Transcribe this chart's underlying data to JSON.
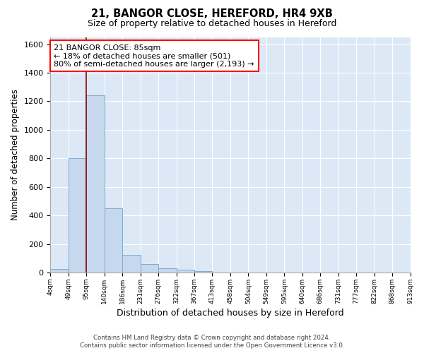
{
  "title": "21, BANGOR CLOSE, HEREFORD, HR4 9XB",
  "subtitle": "Size of property relative to detached houses in Hereford",
  "xlabel": "Distribution of detached houses by size in Hereford",
  "ylabel": "Number of detached properties",
  "bar_values": [
    25,
    800,
    1240,
    450,
    125,
    60,
    28,
    18,
    10,
    0,
    0,
    0,
    0,
    0,
    0,
    0,
    0,
    0,
    0,
    0
  ],
  "bin_labels": [
    "4sqm",
    "49sqm",
    "95sqm",
    "140sqm",
    "186sqm",
    "231sqm",
    "276sqm",
    "322sqm",
    "367sqm",
    "413sqm",
    "458sqm",
    "504sqm",
    "549sqm",
    "595sqm",
    "640sqm",
    "686sqm",
    "731sqm",
    "777sqm",
    "822sqm",
    "868sqm",
    "913sqm"
  ],
  "bar_color": "#c5d8ee",
  "bar_edge_color": "#7aadd4",
  "property_line_x": 2,
  "annotation_line1": "21 BANGOR CLOSE: 85sqm",
  "annotation_line2": "← 18% of detached houses are smaller (501)",
  "annotation_line3": "80% of semi-detached houses are larger (2,193) →",
  "ylim": [
    0,
    1650
  ],
  "yticks": [
    0,
    200,
    400,
    600,
    800,
    1000,
    1200,
    1400,
    1600
  ],
  "footer1": "Contains HM Land Registry data © Crown copyright and database right 2024.",
  "footer2": "Contains public sector information licensed under the Open Government Licence v3.0.",
  "bg_color": "#dce8f5",
  "grid_color": "white"
}
